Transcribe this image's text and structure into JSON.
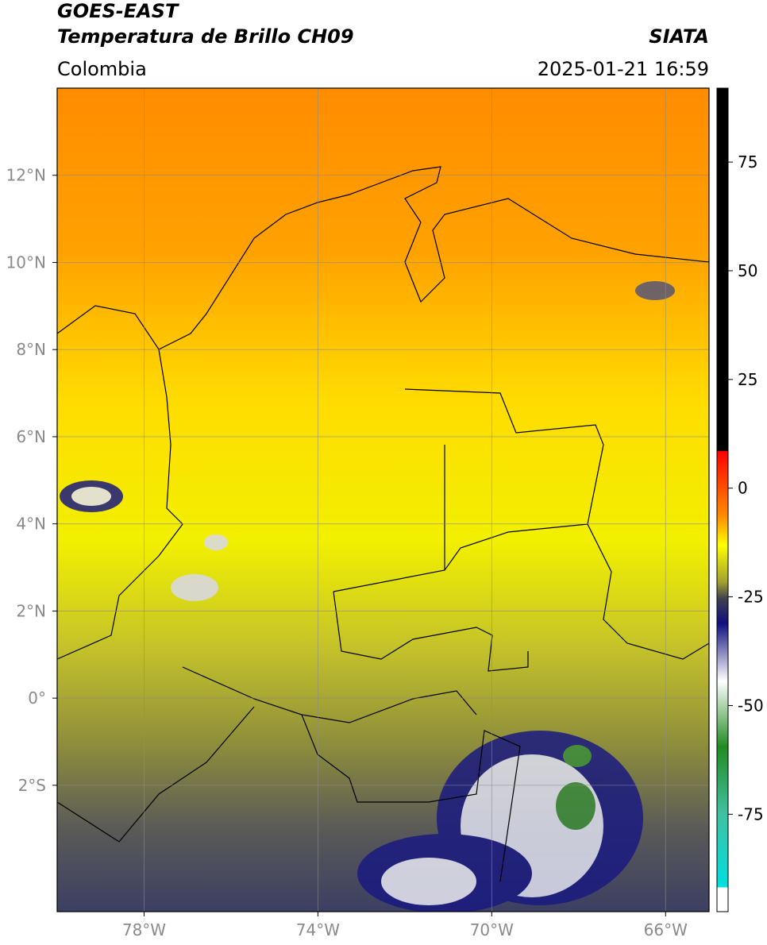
{
  "header": {
    "title": "GOES-EAST",
    "subtitle": "Temperatura de Brillo CH09",
    "source": "SIATA",
    "region": "Colombia",
    "datetime": "2025-01-21 16:59"
  },
  "map": {
    "xlim": [
      -80,
      -65
    ],
    "ylim": [
      -4.9,
      14
    ],
    "lon_ticks": [
      {
        "value": -78,
        "label": "78°W"
      },
      {
        "value": -74,
        "label": "74°W"
      },
      {
        "value": -70,
        "label": "70°W"
      },
      {
        "value": -66,
        "label": "66°W"
      }
    ],
    "lat_ticks": [
      {
        "value": 12,
        "label": "12°N"
      },
      {
        "value": 10,
        "label": "10°N"
      },
      {
        "value": 8,
        "label": "8°N"
      },
      {
        "value": 6,
        "label": "6°N"
      },
      {
        "value": 4,
        "label": "4°N"
      },
      {
        "value": 2,
        "label": "2°N"
      },
      {
        "value": 0,
        "label": "0°"
      },
      {
        "value": -2,
        "label": "2°S"
      }
    ]
  },
  "colorbar": {
    "lim": [
      -97.4,
      92
    ],
    "ticks": [
      75,
      50,
      25,
      0,
      -25,
      -50,
      -75
    ]
  }
}
